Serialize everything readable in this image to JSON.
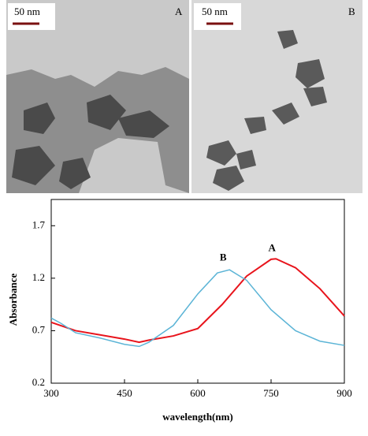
{
  "panels": [
    {
      "scale_bar": "50 nm",
      "label": "A"
    },
    {
      "scale_bar": "50 nm",
      "label": "B"
    }
  ],
  "chart_data": {
    "type": "line",
    "xlabel": "wavelength(nm)",
    "ylabel": "Absorbance",
    "xlim": [
      300,
      900
    ],
    "xticks": [
      300,
      450,
      600,
      750,
      900
    ],
    "ylim": [
      0.2,
      1.95
    ],
    "yticks": [
      0.2,
      0.7,
      1.2,
      1.7
    ],
    "series": [
      {
        "name": "A",
        "color": "#e8141c",
        "x": [
          300,
          350,
          400,
          450,
          480,
          500,
          550,
          600,
          650,
          700,
          750,
          760,
          800,
          850,
          900
        ],
        "values": [
          0.78,
          0.7,
          0.66,
          0.62,
          0.59,
          0.61,
          0.65,
          0.72,
          0.95,
          1.22,
          1.38,
          1.385,
          1.3,
          1.1,
          0.84
        ]
      },
      {
        "name": "B",
        "color": "#5bb4d6",
        "x": [
          300,
          320,
          350,
          400,
          450,
          480,
          500,
          550,
          600,
          640,
          665,
          700,
          750,
          800,
          850,
          900
        ],
        "values": [
          0.82,
          0.77,
          0.68,
          0.63,
          0.57,
          0.55,
          0.59,
          0.75,
          1.05,
          1.25,
          1.28,
          1.18,
          0.9,
          0.7,
          0.6,
          0.56
        ]
      }
    ],
    "annotations": [
      {
        "text": "A",
        "x": 752,
        "y": 1.48
      },
      {
        "text": "B",
        "x": 652,
        "y": 1.39
      }
    ]
  }
}
